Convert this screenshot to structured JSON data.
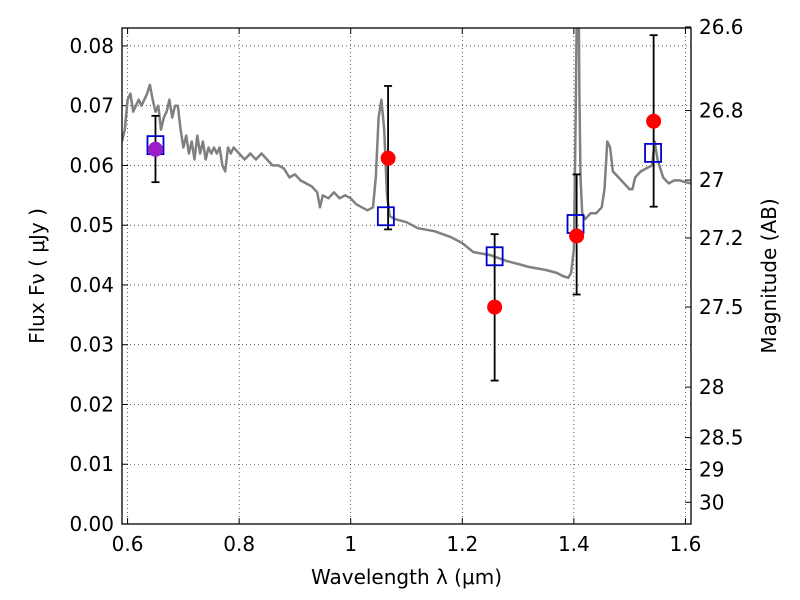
{
  "chart_data": {
    "type": "scatter",
    "xlabel": "Wavelength  λ (μm)",
    "ylabel": "Flux  Fν  ( μJy )",
    "ylabel_right": "Magnitude (AB)",
    "xlim": [
      0.59,
      1.61
    ],
    "ylim": [
      0.0,
      0.083
    ],
    "x_ticks": [
      {
        "value": 0.6,
        "label": "0.6"
      },
      {
        "value": 0.8,
        "label": "0.8"
      },
      {
        "value": 1.0,
        "label": "1"
      },
      {
        "value": 1.2,
        "label": "1.2"
      },
      {
        "value": 1.4,
        "label": "1.4"
      },
      {
        "value": 1.6,
        "label": "1.6"
      }
    ],
    "y_ticks": [
      {
        "value": 0.0,
        "label": "0.00"
      },
      {
        "value": 0.01,
        "label": "0.01"
      },
      {
        "value": 0.02,
        "label": "0.02"
      },
      {
        "value": 0.03,
        "label": "0.03"
      },
      {
        "value": 0.04,
        "label": "0.04"
      },
      {
        "value": 0.05,
        "label": "0.05"
      },
      {
        "value": 0.06,
        "label": "0.06"
      },
      {
        "value": 0.07,
        "label": "0.07"
      },
      {
        "value": 0.08,
        "label": "0.08"
      }
    ],
    "right_ticks": [
      {
        "mag": 26.6,
        "label": "26.6"
      },
      {
        "mag": 26.8,
        "label": "26.8"
      },
      {
        "mag": 27.0,
        "label": "27"
      },
      {
        "mag": 27.2,
        "label": "27.2"
      },
      {
        "mag": 27.5,
        "label": "27.5"
      },
      {
        "mag": 28.0,
        "label": "28"
      },
      {
        "mag": 28.5,
        "label": "28.5"
      },
      {
        "mag": 29.0,
        "label": "29"
      },
      {
        "mag": 30.0,
        "label": "30"
      }
    ],
    "grid": true,
    "series": [
      {
        "kind": "line",
        "color": "#808080",
        "points": [
          [
            0.59,
            0.064
          ],
          [
            0.595,
            0.066
          ],
          [
            0.6,
            0.071
          ],
          [
            0.605,
            0.072
          ],
          [
            0.61,
            0.069
          ],
          [
            0.615,
            0.07
          ],
          [
            0.62,
            0.071
          ],
          [
            0.625,
            0.07
          ],
          [
            0.63,
            0.071
          ],
          [
            0.635,
            0.072
          ],
          [
            0.64,
            0.0735
          ],
          [
            0.645,
            0.071
          ],
          [
            0.65,
            0.069
          ],
          [
            0.655,
            0.07
          ],
          [
            0.66,
            0.066
          ],
          [
            0.665,
            0.068
          ],
          [
            0.67,
            0.069
          ],
          [
            0.675,
            0.071
          ],
          [
            0.68,
            0.068
          ],
          [
            0.685,
            0.07
          ],
          [
            0.69,
            0.07
          ],
          [
            0.695,
            0.066
          ],
          [
            0.7,
            0.063
          ],
          [
            0.705,
            0.065
          ],
          [
            0.71,
            0.062
          ],
          [
            0.715,
            0.064
          ],
          [
            0.72,
            0.061
          ],
          [
            0.725,
            0.065
          ],
          [
            0.73,
            0.062
          ],
          [
            0.735,
            0.064
          ],
          [
            0.74,
            0.061
          ],
          [
            0.745,
            0.063
          ],
          [
            0.75,
            0.062
          ],
          [
            0.755,
            0.063
          ],
          [
            0.76,
            0.062
          ],
          [
            0.765,
            0.063
          ],
          [
            0.77,
            0.06
          ],
          [
            0.775,
            0.059
          ],
          [
            0.78,
            0.063
          ],
          [
            0.785,
            0.062
          ],
          [
            0.79,
            0.063
          ],
          [
            0.8,
            0.062
          ],
          [
            0.81,
            0.061
          ],
          [
            0.82,
            0.062
          ],
          [
            0.83,
            0.061
          ],
          [
            0.84,
            0.062
          ],
          [
            0.85,
            0.061
          ],
          [
            0.86,
            0.06
          ],
          [
            0.87,
            0.06
          ],
          [
            0.88,
            0.0595
          ],
          [
            0.89,
            0.058
          ],
          [
            0.9,
            0.0585
          ],
          [
            0.91,
            0.0575
          ],
          [
            0.92,
            0.057
          ],
          [
            0.93,
            0.0565
          ],
          [
            0.94,
            0.0555
          ],
          [
            0.945,
            0.053
          ],
          [
            0.95,
            0.055
          ],
          [
            0.96,
            0.0545
          ],
          [
            0.97,
            0.0555
          ],
          [
            0.98,
            0.0545
          ],
          [
            0.99,
            0.055
          ],
          [
            1.0,
            0.0545
          ],
          [
            1.01,
            0.0535
          ],
          [
            1.02,
            0.053
          ],
          [
            1.03,
            0.0525
          ],
          [
            1.04,
            0.053
          ],
          [
            1.045,
            0.058
          ],
          [
            1.05,
            0.068
          ],
          [
            1.055,
            0.071
          ],
          [
            1.06,
            0.066
          ],
          [
            1.065,
            0.055
          ],
          [
            1.07,
            0.0515
          ],
          [
            1.08,
            0.051
          ],
          [
            1.1,
            0.0505
          ],
          [
            1.12,
            0.0495
          ],
          [
            1.15,
            0.049
          ],
          [
            1.18,
            0.048
          ],
          [
            1.2,
            0.047
          ],
          [
            1.22,
            0.0455
          ],
          [
            1.25,
            0.045
          ],
          [
            1.28,
            0.044
          ],
          [
            1.3,
            0.0435
          ],
          [
            1.32,
            0.043
          ],
          [
            1.35,
            0.0425
          ],
          [
            1.37,
            0.042
          ],
          [
            1.38,
            0.0415
          ],
          [
            1.39,
            0.0412
          ],
          [
            1.395,
            0.042
          ],
          [
            1.4,
            0.046
          ],
          [
            1.403,
            0.066
          ],
          [
            1.405,
            0.083
          ],
          [
            1.407,
            0.083
          ],
          [
            1.409,
            0.083
          ],
          [
            1.41,
            0.072
          ],
          [
            1.412,
            0.058
          ],
          [
            1.415,
            0.052
          ],
          [
            1.42,
            0.051
          ],
          [
            1.43,
            0.052
          ],
          [
            1.44,
            0.052
          ],
          [
            1.45,
            0.053
          ],
          [
            1.455,
            0.056
          ],
          [
            1.46,
            0.064
          ],
          [
            1.465,
            0.063
          ],
          [
            1.47,
            0.059
          ],
          [
            1.48,
            0.058
          ],
          [
            1.49,
            0.057
          ],
          [
            1.5,
            0.056
          ],
          [
            1.505,
            0.056
          ],
          [
            1.51,
            0.058
          ],
          [
            1.52,
            0.059
          ],
          [
            1.53,
            0.0595
          ],
          [
            1.54,
            0.06
          ],
          [
            1.545,
            0.064
          ],
          [
            1.55,
            0.061
          ],
          [
            1.56,
            0.058
          ],
          [
            1.57,
            0.057
          ],
          [
            1.58,
            0.0575
          ],
          [
            1.59,
            0.0575
          ],
          [
            1.6,
            0.0572
          ],
          [
            1.61,
            0.057
          ]
        ]
      },
      {
        "kind": "errorbar",
        "color": "#000000",
        "points": [
          {
            "x": 0.65,
            "lo": 0.0572,
            "hi": 0.0683
          },
          {
            "x": 1.067,
            "lo": 0.0493,
            "hi": 0.0733
          },
          {
            "x": 1.258,
            "lo": 0.024,
            "hi": 0.0485
          },
          {
            "x": 1.405,
            "lo": 0.0384,
            "hi": 0.0585
          },
          {
            "x": 1.543,
            "lo": 0.0531,
            "hi": 0.0818
          }
        ]
      },
      {
        "kind": "squares",
        "color": "#0000cc",
        "points": [
          [
            0.65,
            0.0634
          ],
          [
            1.063,
            0.0515
          ],
          [
            1.258,
            0.0448
          ],
          [
            1.403,
            0.0502
          ],
          [
            1.542,
            0.0621
          ]
        ]
      },
      {
        "kind": "circles",
        "color": "#ff0000",
        "overlap_color": "#9b1fc8",
        "points": [
          [
            0.65,
            0.0627
          ],
          [
            1.067,
            0.0612
          ],
          [
            1.258,
            0.0363
          ],
          [
            1.405,
            0.0482
          ],
          [
            1.543,
            0.0674
          ]
        ]
      }
    ]
  }
}
